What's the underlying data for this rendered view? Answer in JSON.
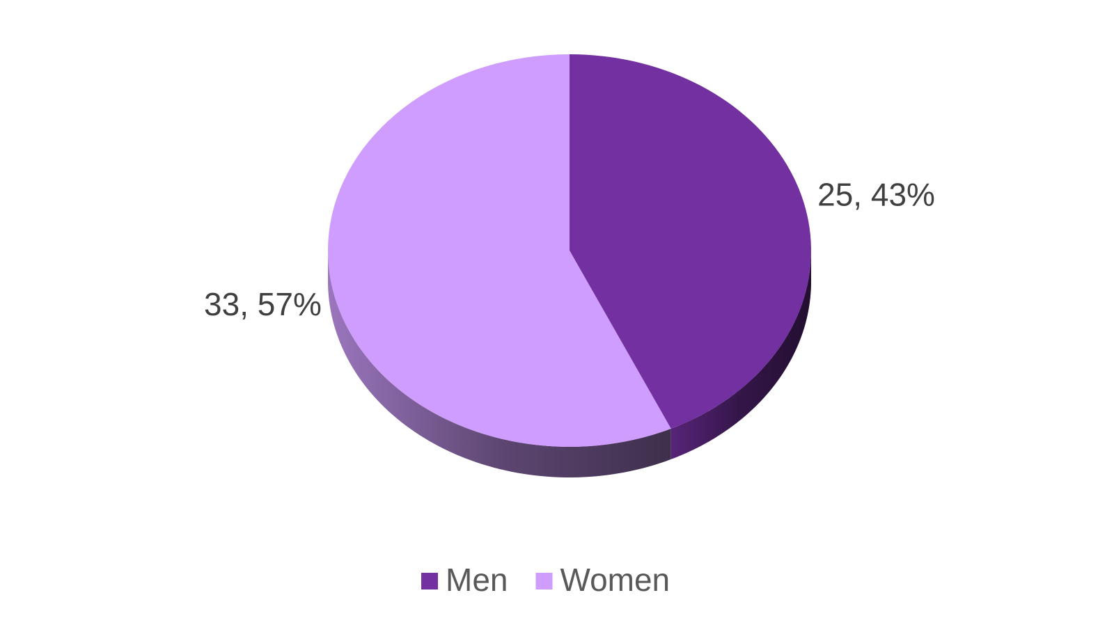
{
  "chart_data": {
    "type": "pie3d",
    "categories": [
      "Men",
      "Women"
    ],
    "values": [
      25,
      33
    ],
    "value_labels": [
      "25, 43%",
      "33, 57%"
    ],
    "colors": [
      "#7330a0",
      "#cf9dfd"
    ],
    "legend": "bottom"
  }
}
